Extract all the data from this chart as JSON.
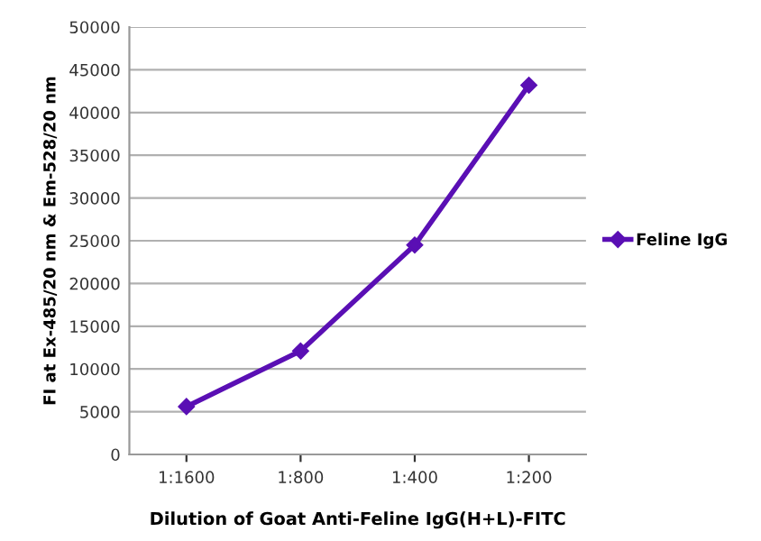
{
  "chart_data": {
    "type": "line",
    "xlabel": "Dilution of Goat Anti-Feline IgG(H+L)-FITC",
    "ylabel": "FI at Ex-485/20 nm & Em-528/20 nm",
    "categories": [
      "1:1600",
      "1:800",
      "1:400",
      "1:200"
    ],
    "series": [
      {
        "name": "Feline IgG",
        "color": "#5a0fb4",
        "values": [
          5600,
          12100,
          24500,
          43200
        ]
      }
    ],
    "ylim": [
      0,
      50000
    ],
    "yticks": [
      0,
      5000,
      10000,
      15000,
      20000,
      25000,
      30000,
      35000,
      40000,
      45000,
      50000
    ],
    "grid": "y",
    "legend": "right",
    "marker": "diamond",
    "line_style": "solid"
  }
}
